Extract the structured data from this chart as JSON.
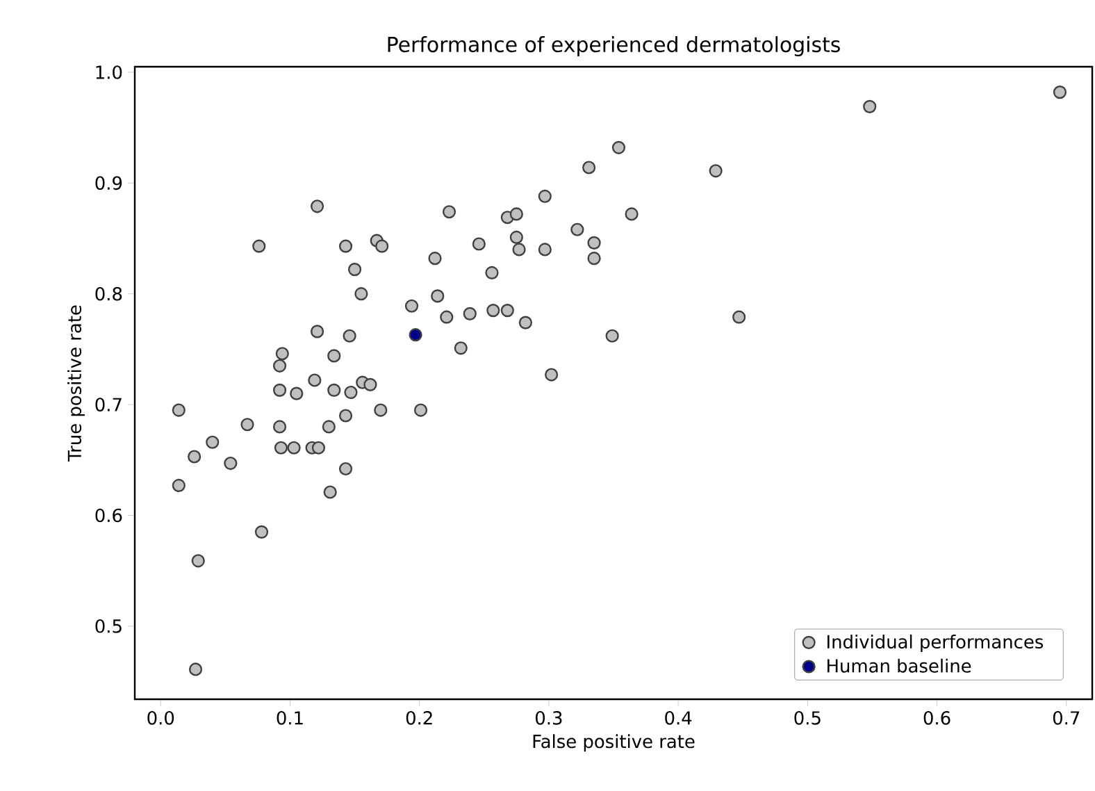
{
  "chart_data": {
    "type": "scatter",
    "title": "Performance of experienced dermatologists",
    "xlabel": "False positive rate",
    "ylabel": "True positive rate",
    "xlim": [
      -0.02,
      0.72
    ],
    "ylim": [
      0.434,
      1.005
    ],
    "xticks": [
      {
        "value": 0.0,
        "label": "0.0"
      },
      0.1,
      0.2,
      0.3,
      0.4,
      0.5,
      0.6,
      0.7
    ],
    "yticks": [
      0.5,
      0.6,
      0.7,
      0.8,
      0.9,
      {
        "value": 1.0,
        "label": "1.0"
      }
    ],
    "grid": false,
    "legend": "bottom right",
    "series": [
      {
        "name": "Individual performances",
        "color": "#c0c0c0",
        "x": [
          0.121,
          0.223,
          0.076,
          0.143,
          0.167,
          0.171,
          0.246,
          0.212,
          0.15,
          0.256,
          0.155,
          0.194,
          0.214,
          0.221,
          0.239,
          0.257,
          0.232,
          0.121,
          0.146,
          0.134,
          0.094,
          0.092,
          0.354,
          0.331,
          0.429,
          0.297,
          0.268,
          0.275,
          0.364,
          0.322,
          0.335,
          0.335,
          0.275,
          0.277,
          0.297,
          0.268,
          0.282,
          0.447,
          0.349,
          0.302,
          0.548,
          0.695,
          0.092,
          0.105,
          0.119,
          0.134,
          0.147,
          0.156,
          0.162,
          0.014,
          0.17,
          0.201,
          0.067,
          0.092,
          0.143,
          0.13,
          0.04,
          0.026,
          0.054,
          0.093,
          0.103,
          0.117,
          0.122,
          0.143,
          0.014,
          0.131,
          0.078,
          0.029,
          0.027
        ],
        "values": [
          0.879,
          0.874,
          0.843,
          0.843,
          0.848,
          0.843,
          0.845,
          0.832,
          0.822,
          0.819,
          0.8,
          0.789,
          0.798,
          0.779,
          0.782,
          0.785,
          0.751,
          0.766,
          0.762,
          0.744,
          0.746,
          0.735,
          0.932,
          0.914,
          0.911,
          0.888,
          0.869,
          0.872,
          0.872,
          0.858,
          0.846,
          0.832,
          0.851,
          0.84,
          0.84,
          0.785,
          0.774,
          0.779,
          0.762,
          0.727,
          0.969,
          0.982,
          0.713,
          0.71,
          0.722,
          0.713,
          0.711,
          0.72,
          0.718,
          0.695,
          0.695,
          0.695,
          0.682,
          0.68,
          0.69,
          0.68,
          0.666,
          0.653,
          0.647,
          0.661,
          0.661,
          0.661,
          0.661,
          0.642,
          0.627,
          0.621,
          0.585,
          0.559,
          0.461
        ]
      },
      {
        "name": "Human baseline",
        "color": "#00008b",
        "x": [
          0.197
        ],
        "values": [
          0.763
        ]
      }
    ]
  }
}
